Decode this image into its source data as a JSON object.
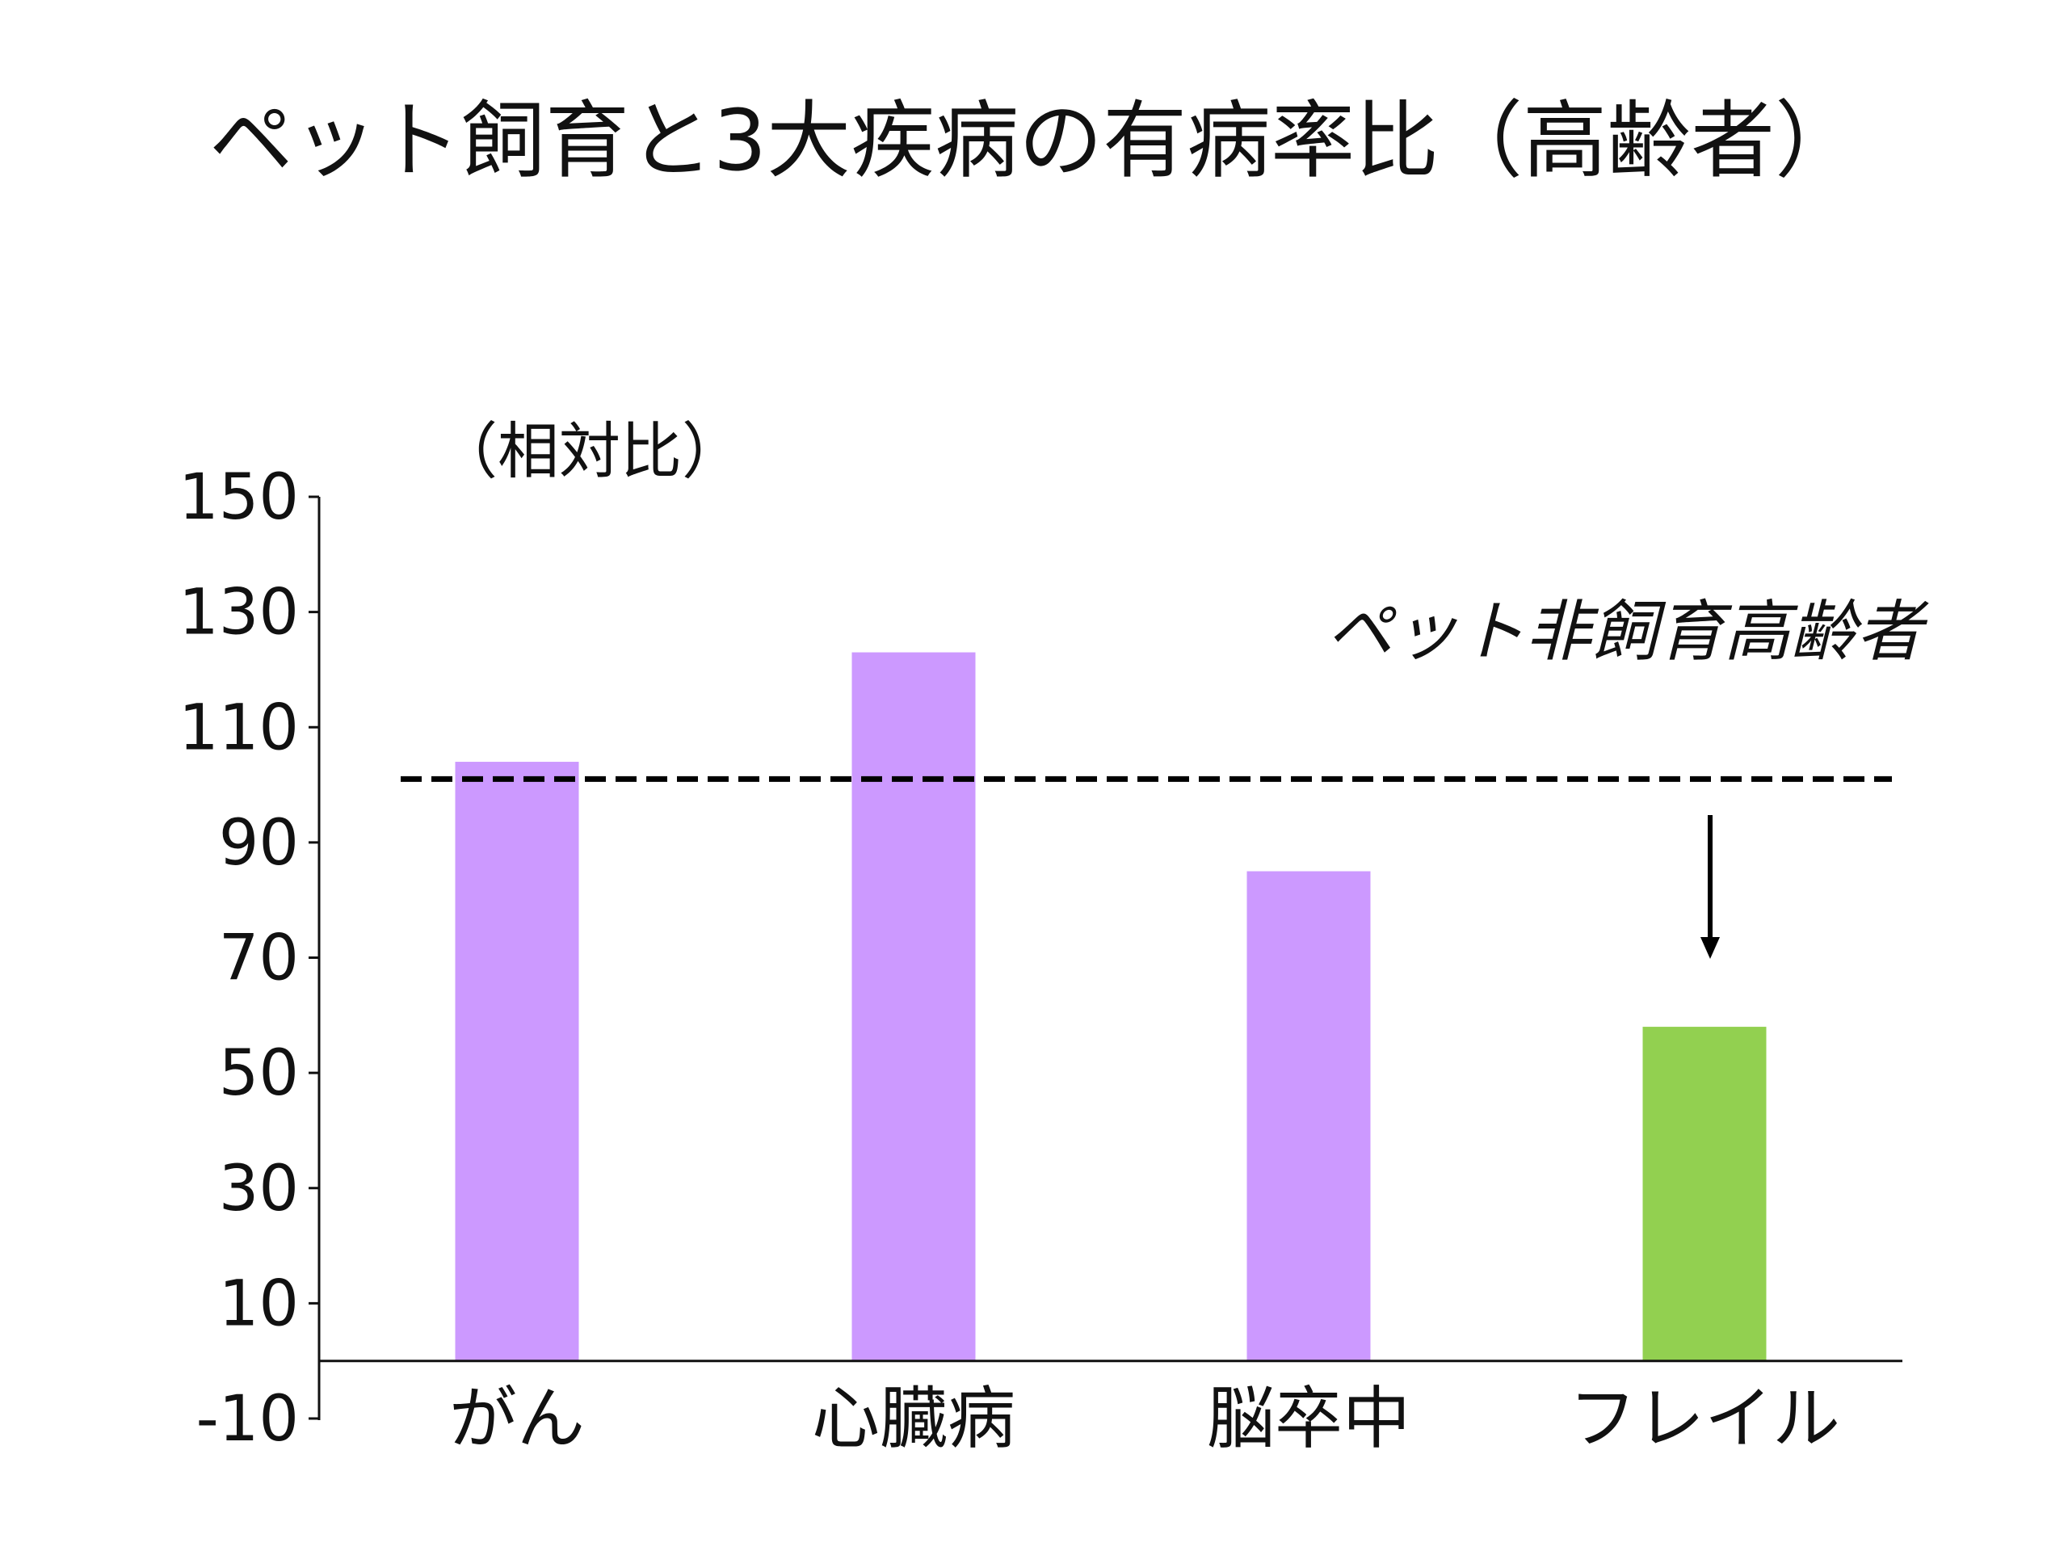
{
  "chart_data": {
    "type": "bar",
    "title": "ペット飼育と3大疾病の有病率比（高齢者）",
    "ylabel": "（相対比）",
    "xlabel": "",
    "categories": [
      "がん",
      "心臓病",
      "脳卒中",
      "フレイル"
    ],
    "values": [
      104,
      123,
      85,
      58
    ],
    "bar_colors": [
      "#cc99ff",
      "#cc99ff",
      "#cc99ff",
      "#92d050"
    ],
    "ylim": [
      -10,
      150
    ],
    "yticks": [
      150,
      130,
      110,
      90,
      70,
      50,
      30,
      10,
      -10
    ],
    "reference_line": {
      "value": 101,
      "label": "ペット非飼育高齢者",
      "style": "dashed"
    },
    "annotation": {
      "type": "down-arrow",
      "category": "フレイル"
    },
    "grid": false
  }
}
